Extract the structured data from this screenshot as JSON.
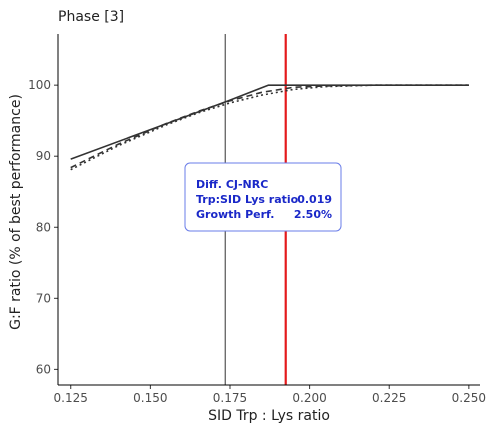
{
  "chart_data": {
    "type": "line",
    "title": "Phase [3]",
    "xlabel": "SID Trp : Lys ratio",
    "ylabel": "G:F ratio (% of best performance)",
    "xlim": [
      0.121,
      0.2535
    ],
    "ylim": [
      57.8,
      107.2
    ],
    "xticks": [
      0.125,
      0.15,
      0.175,
      0.2,
      0.225,
      0.25
    ],
    "xtick_labels": [
      "0.125",
      "0.150",
      "0.175",
      "0.200",
      "0.225",
      "0.250"
    ],
    "yticks": [
      60,
      70,
      80,
      90,
      100
    ],
    "ytick_labels": [
      "60",
      "70",
      "80",
      "90",
      "100"
    ],
    "grid": false,
    "series": [
      {
        "style": "solid",
        "x": [
          0.125,
          0.1745,
          0.187,
          0.1925,
          0.25
        ],
        "y": [
          89.6,
          97.8,
          100.0,
          100.0,
          100.0
        ]
      },
      {
        "style": "dashed",
        "x": [
          0.125,
          0.14,
          0.155,
          0.165,
          0.175,
          0.185,
          0.195,
          0.205,
          0.22,
          0.25
        ],
        "y": [
          88.4,
          91.7,
          94.6,
          96.3,
          97.8,
          99.0,
          99.7,
          99.9,
          100.0,
          100.0
        ]
      },
      {
        "style": "dotted",
        "x": [
          0.125,
          0.14,
          0.155,
          0.165,
          0.175,
          0.185,
          0.195,
          0.205,
          0.22,
          0.25
        ],
        "y": [
          88.1,
          91.5,
          94.4,
          96.1,
          97.5,
          98.6,
          99.4,
          99.8,
          100.0,
          100.0
        ]
      }
    ],
    "vlines": [
      {
        "x": 0.1735,
        "color": "#333333"
      },
      {
        "x": 0.1925,
        "color": "#e41a1c"
      }
    ],
    "annotation": {
      "title": "Diff. CJ-NRC",
      "rows": [
        {
          "label": "Trp:SID Lys ratio",
          "value": "0.019"
        },
        {
          "label": "Growth Perf.",
          "value": "2.50%"
        }
      ],
      "color": "#1a28c8",
      "border": "#6a7de8"
    }
  }
}
